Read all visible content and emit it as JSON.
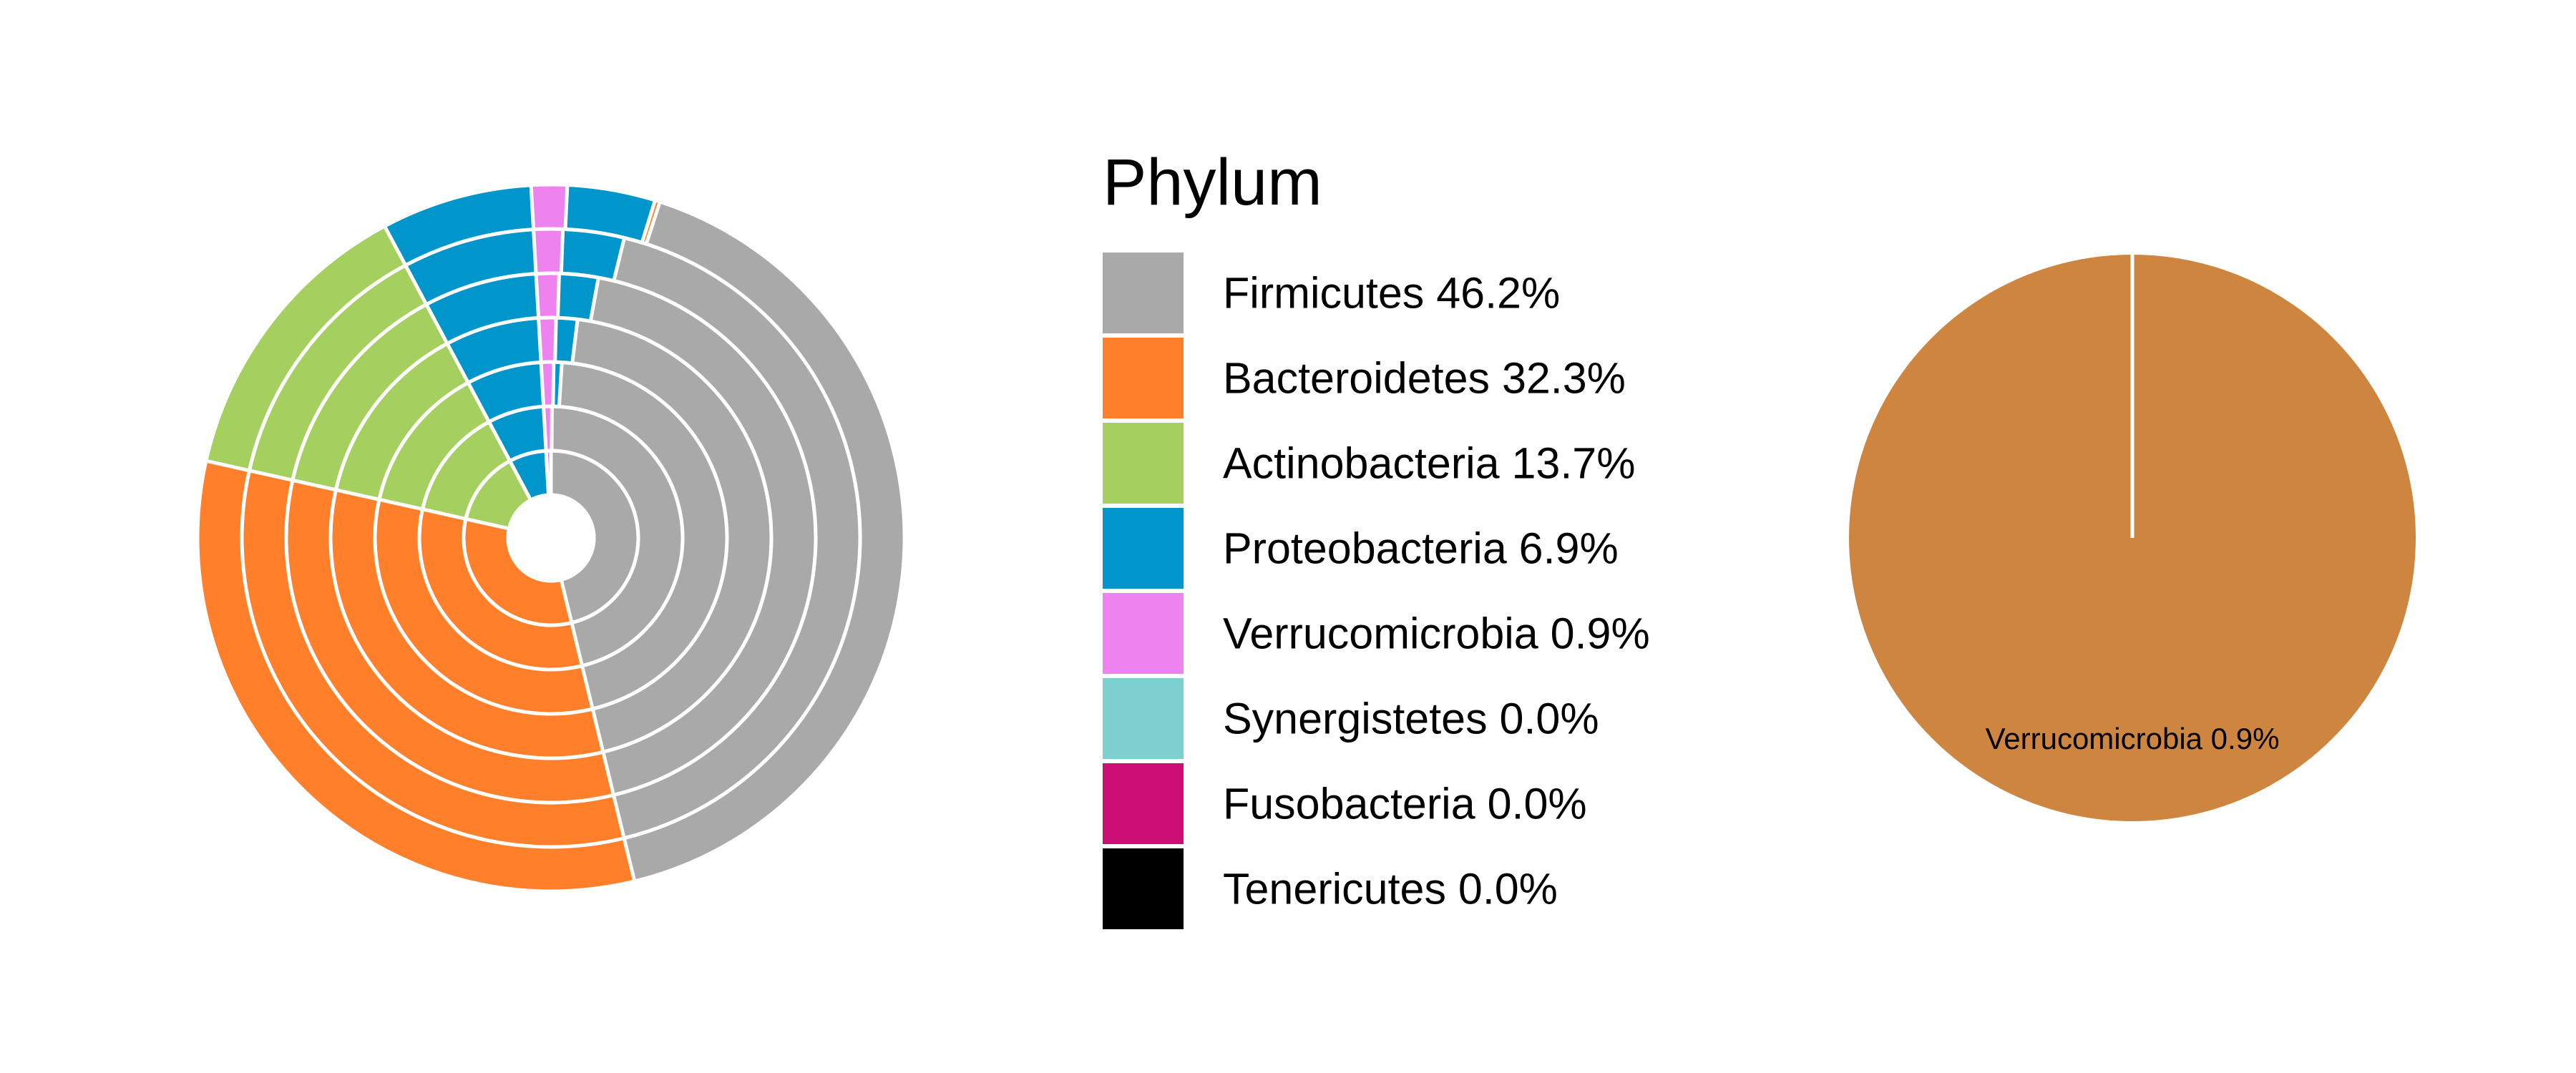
{
  "chart_data": [
    {
      "type": "pie",
      "variant": "nested-radial-fan",
      "legend_title": "Phylum",
      "legend_placement": "right",
      "categories": [
        "Firmicutes",
        "Bacteroidetes",
        "Actinobacteria",
        "Proteobacteria",
        "Verrucomicrobia",
        "Synergistetes",
        "Fusobacteria",
        "Tenericutes"
      ],
      "legend_labels": [
        "Firmicutes 46.2%",
        "Bacteroidetes 32.3%",
        "Actinobacteria 13.7%",
        "Proteobacteria 6.9%",
        "Verrucomicrobia 0.9%",
        "Synergistetes 0.0%",
        "Fusobacteria 0.0%",
        "Tenericutes 0.0%"
      ],
      "values": [
        46.2,
        32.3,
        13.7,
        6.9,
        0.9,
        0.0,
        0.0,
        0.0
      ],
      "colors": [
        "#A9A9A9",
        "#FF7F2A",
        "#A5CF5E",
        "#0096CC",
        "#EE82EE",
        "#7ECFCF",
        "#CC0E74",
        "#000000"
      ],
      "ring_count": 7,
      "grid": false
    },
    {
      "type": "pie",
      "categories": [
        "Verrucomicrobia"
      ],
      "values": [
        100
      ],
      "slice_labels": [
        "Verrucomicrobia 0.9%"
      ],
      "colors": [
        "#CD853F"
      ],
      "grid": false
    }
  ]
}
